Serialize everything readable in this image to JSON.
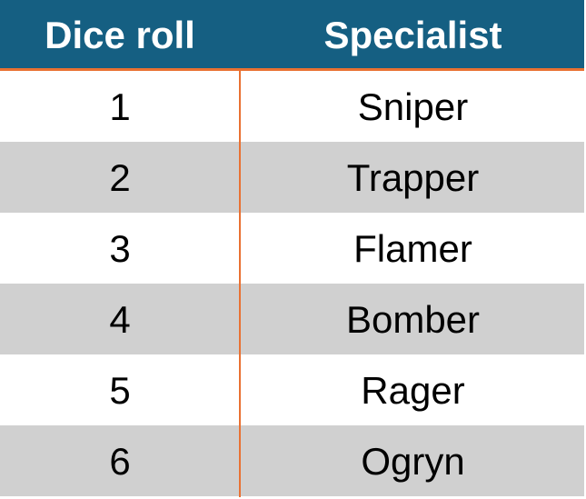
{
  "table": {
    "headers": [
      "Dice roll",
      "Specialist"
    ],
    "rows": [
      {
        "roll": "1",
        "specialist": "Sniper"
      },
      {
        "roll": "2",
        "specialist": "Trapper"
      },
      {
        "roll": "3",
        "specialist": "Flamer"
      },
      {
        "roll": "4",
        "specialist": "Bomber"
      },
      {
        "roll": "5",
        "specialist": "Rager"
      },
      {
        "roll": "6",
        "specialist": "Ogryn"
      }
    ]
  },
  "colors": {
    "header_bg": "#155f82",
    "header_text": "#ffffff",
    "accent_line": "#e97132",
    "band_row": "#d0d0d0",
    "plain_row": "#ffffff"
  }
}
